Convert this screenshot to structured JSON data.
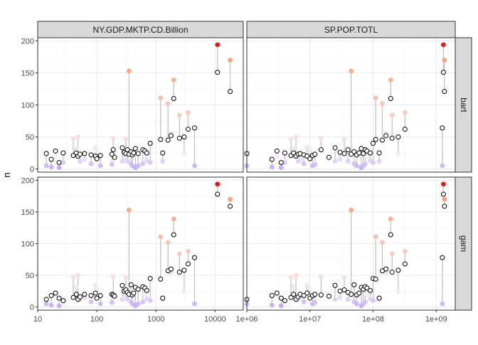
{
  "chart_data": {
    "type": "scatter",
    "facets": {
      "columns": [
        "NY.GDP.MKTP.CD.Billion",
        "SP.POP.TOTL"
      ],
      "rows": [
        "bart",
        "gam"
      ]
    },
    "ylabel": "n",
    "ylim": [
      -5,
      205
    ],
    "yticks": [
      0,
      50,
      100,
      150,
      200
    ],
    "x_scale": "log10",
    "xaxes": [
      {
        "xlim": [
          10,
          30000
        ],
        "ticks": [
          10,
          100,
          1000,
          10000
        ],
        "tick_labels": [
          "10",
          "100",
          "1000",
          "10000"
        ]
      },
      {
        "xlim": [
          1000000,
          2000000000
        ],
        "ticks": [
          1000000,
          10000000,
          100000000,
          1000000000
        ],
        "tick_labels": [
          "1e+06",
          "1e+07",
          "1e+08",
          "1e+09"
        ]
      }
    ],
    "grid": true,
    "colors": {
      "highlight": "#e41a1c",
      "gradient_low": "#bfa8f5",
      "gradient_mid": "#f3eef5",
      "gradient_high": "#f4a582",
      "segment": "#bdbdbd",
      "strip": "#d9d9d9"
    },
    "gdp_x": [
      14,
      17,
      20,
      23,
      27,
      40,
      45,
      48,
      52,
      62,
      80,
      95,
      100,
      115,
      180,
      190,
      200,
      270,
      290,
      310,
      330,
      350,
      380,
      400,
      420,
      450,
      500,
      600,
      650,
      700,
      800,
      1200,
      1300,
      1600,
      1800,
      2000,
      2500,
      3000,
      3500,
      4500,
      11000,
      18000
    ],
    "pop_x": [
      1000000,
      2500000,
      3000000,
      3500000,
      4000000,
      5000000,
      5500000,
      6000000,
      6500000,
      7000000,
      8000000,
      9000000,
      10000000,
      11000000,
      12000000,
      15000000,
      20000000,
      25000000,
      30000000,
      35000000,
      40000000,
      45000000,
      50000000,
      55000000,
      60000000,
      65000000,
      70000000,
      75000000,
      80000000,
      90000000,
      100000000,
      110000000,
      125000000,
      140000000,
      160000000,
      190000000,
      200000000,
      250000000,
      320000000,
      1250000000,
      1300000000,
      1350000000
    ],
    "observed": [
      5,
      3,
      20,
      2,
      10,
      47,
      32,
      50,
      12,
      15,
      8,
      34,
      28,
      5,
      7,
      48,
      20,
      12,
      15,
      46,
      12,
      153,
      8,
      5,
      20,
      2,
      5,
      8,
      20,
      13,
      10,
      111,
      12,
      102,
      55,
      139,
      84,
      24,
      88,
      5,
      194,
      170
    ],
    "bart": [
      24,
      15,
      28,
      10,
      25,
      21,
      25,
      20,
      23,
      24,
      22,
      20,
      16,
      21,
      23,
      30,
      18,
      33,
      26,
      24,
      30,
      23,
      27,
      22,
      25,
      32,
      24,
      30,
      28,
      25,
      40,
      46,
      25,
      45,
      52,
      110,
      48,
      50,
      62,
      64,
      151,
      121
    ],
    "gam": [
      12,
      18,
      22,
      14,
      10,
      15,
      20,
      12,
      16,
      20,
      18,
      22,
      14,
      18,
      20,
      19,
      17,
      34,
      25,
      27,
      23,
      20,
      35,
      19,
      22,
      31,
      28,
      32,
      30,
      26,
      45,
      44,
      14,
      57,
      60,
      114,
      55,
      58,
      68,
      78,
      178,
      159
    ]
  }
}
